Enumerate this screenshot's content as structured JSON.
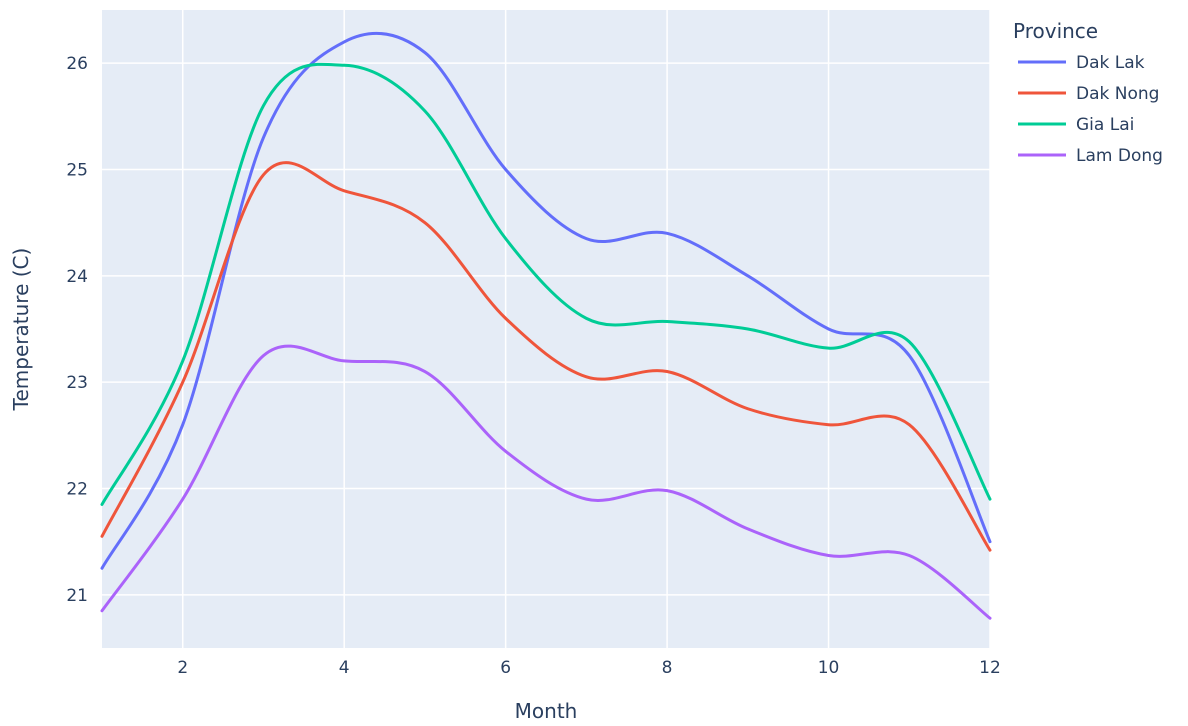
{
  "chart_data": {
    "type": "line",
    "xlabel": "Month",
    "ylabel": "Temperature (C)",
    "xlim": [
      1,
      12
    ],
    "ylim": [
      20.5,
      26.5
    ],
    "xticks": [
      2,
      4,
      6,
      8,
      10,
      12
    ],
    "yticks": [
      21,
      22,
      23,
      24,
      25,
      26
    ],
    "grid": true,
    "legend": {
      "title": "Province",
      "placement": "right"
    },
    "x": [
      1,
      2,
      3,
      4,
      5,
      6,
      7,
      8,
      9,
      10,
      11,
      12
    ],
    "series": [
      {
        "name": "Dak Lak",
        "color": "#636efa",
        "values": [
          21.25,
          22.6,
          25.3,
          26.2,
          26.1,
          25.0,
          24.35,
          24.4,
          24.0,
          23.5,
          23.25,
          21.5
        ]
      },
      {
        "name": "Dak Nong",
        "color": "#ef553b",
        "values": [
          21.55,
          23.0,
          24.95,
          24.8,
          24.5,
          23.6,
          23.05,
          23.1,
          22.75,
          22.6,
          22.6,
          21.42
        ]
      },
      {
        "name": "Gia Lai",
        "color": "#00cc96",
        "values": [
          21.85,
          23.2,
          25.6,
          25.98,
          25.55,
          24.35,
          23.6,
          23.57,
          23.5,
          23.32,
          23.38,
          21.9
        ]
      },
      {
        "name": "Lam Dong",
        "color": "#ab63fa",
        "values": [
          20.85,
          21.9,
          23.25,
          23.2,
          23.1,
          22.35,
          21.9,
          21.98,
          21.62,
          21.37,
          21.37,
          20.78
        ]
      }
    ]
  }
}
